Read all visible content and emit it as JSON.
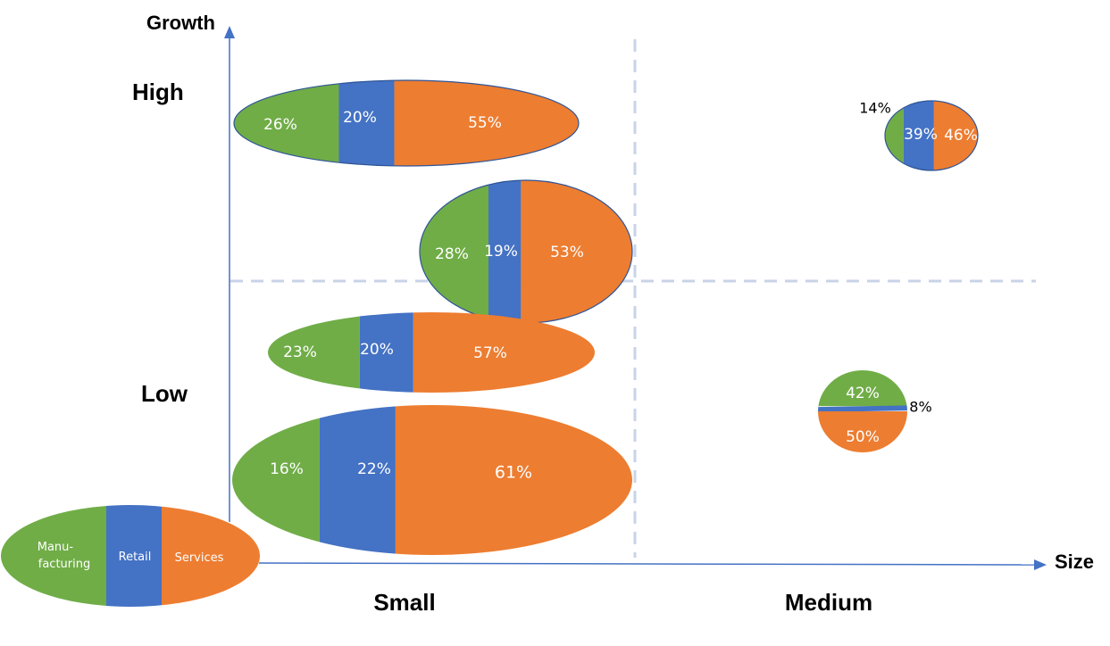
{
  "axes": {
    "y_title": "Growth",
    "x_title": "Size",
    "y_levels": [
      "High",
      "Low"
    ],
    "x_levels": [
      "Small",
      "Medium"
    ]
  },
  "legend": {
    "segments": [
      {
        "lines": [
          "Manu-",
          "facturing"
        ],
        "color": "#70ad47"
      },
      {
        "lines": [
          "Retail"
        ],
        "color": "#4472c4"
      },
      {
        "lines": [
          "Services"
        ],
        "color": "#ed7d31"
      }
    ]
  },
  "colors": {
    "manufacturing": "#70ad47",
    "retail": "#4472c4",
    "services": "#ed7d31",
    "axis": "#4472c4",
    "divider": "#c9d3e8"
  },
  "bubbles": [
    {
      "id": "small-high-1",
      "layout": "vertical",
      "values": [
        26,
        20,
        55
      ],
      "labels": [
        "26%",
        "20%",
        "55%"
      ]
    },
    {
      "id": "small-high-2",
      "layout": "vertical",
      "values": [
        28,
        19,
        53
      ],
      "labels": [
        "28%",
        "19%",
        "53%"
      ]
    },
    {
      "id": "small-low-1",
      "layout": "vertical",
      "values": [
        23,
        20,
        57
      ],
      "labels": [
        "23%",
        "20%",
        "57%"
      ]
    },
    {
      "id": "small-low-2",
      "layout": "vertical",
      "values": [
        16,
        22,
        61
      ],
      "labels": [
        "16%",
        "22%",
        "61%"
      ]
    },
    {
      "id": "medium-high",
      "layout": "vertical",
      "values": [
        14,
        39,
        46
      ],
      "labels": [
        "14%",
        "39%",
        "46%"
      ],
      "outside": [
        0
      ]
    },
    {
      "id": "medium-low",
      "layout": "horizontal",
      "values": [
        42,
        8,
        50
      ],
      "labels": [
        "42%",
        "8%",
        "50%"
      ],
      "outside": [
        1
      ]
    }
  ]
}
